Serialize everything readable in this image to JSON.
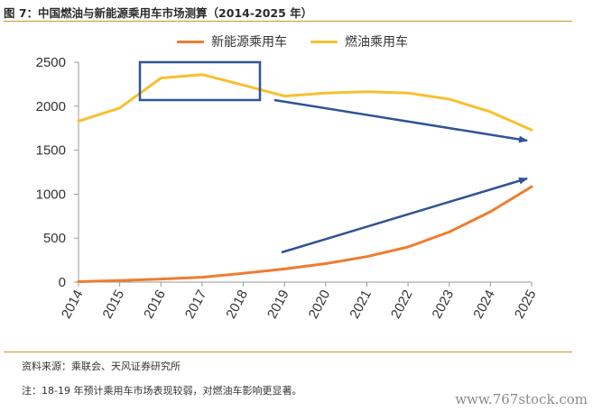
{
  "title": "图 7：中国燃油与新能源乘用车市场测算（2014-2025 年）",
  "source": "资料来源：乘联会、天风证券研究所",
  "note": "注：18-19 年预计乘用车市场表现较弱，对燃油车影响更显著。",
  "watermark": "www.767stock.com",
  "colors": {
    "nev": "#ED7D31",
    "fuel": "#F8C030",
    "annotation": "#2F5496",
    "rule": "#C8962C"
  },
  "chart_data": {
    "type": "line",
    "x": [
      "2014",
      "2015",
      "2016",
      "2017",
      "2018",
      "2019",
      "2020",
      "2021",
      "2022",
      "2023",
      "2024",
      "2025"
    ],
    "series": [
      {
        "name": "新能源乘用车",
        "color": "#ED7D31",
        "values": [
          5,
          18,
          35,
          55,
          100,
          150,
          210,
          290,
          400,
          570,
          800,
          1085
        ]
      },
      {
        "name": "燃油乘用车",
        "color": "#F8C030",
        "values": [
          1830,
          1980,
          2320,
          2360,
          2240,
          2115,
          2150,
          2165,
          2150,
          2080,
          1935,
          1730
        ]
      }
    ],
    "ylim": [
      0,
      2500
    ],
    "yticks": [
      0,
      500,
      1000,
      1500,
      2000,
      2500
    ],
    "ytick_labels": [
      "0",
      "500",
      "1000",
      "1500",
      "2000",
      "2500"
    ],
    "legend_position": "top",
    "grid": false
  }
}
